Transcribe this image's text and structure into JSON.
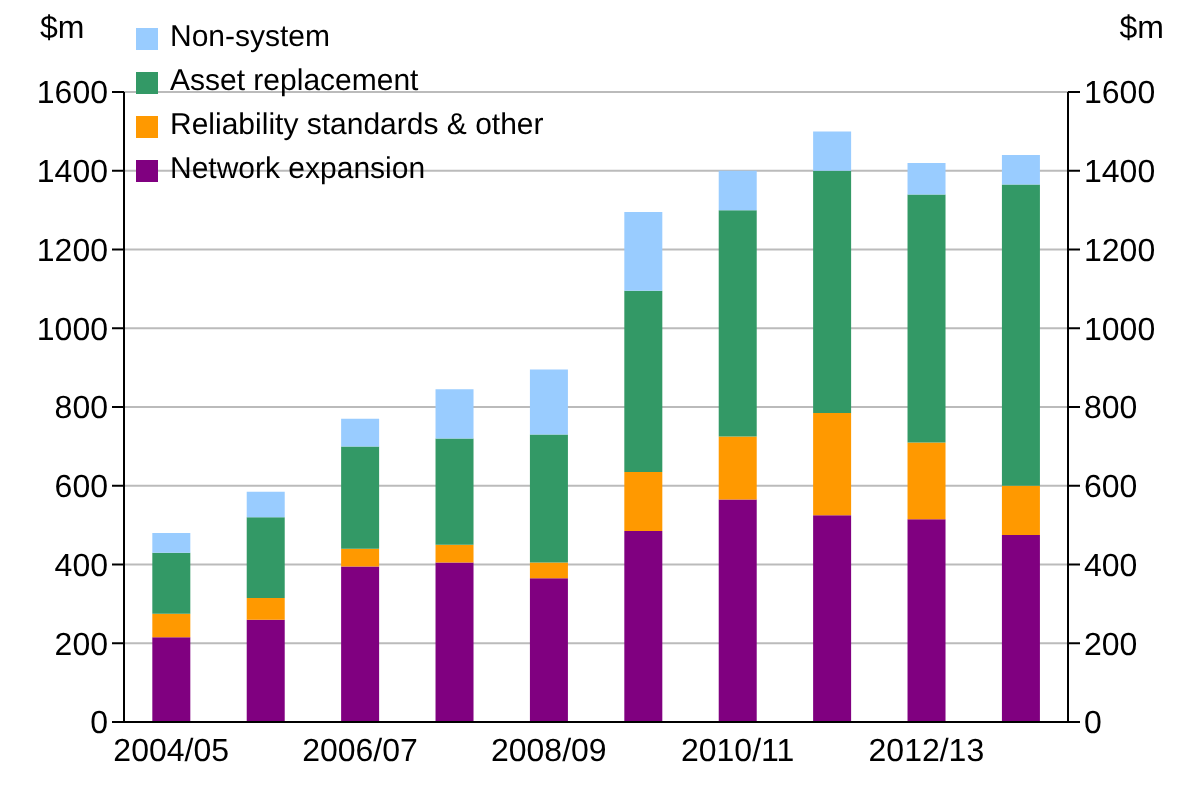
{
  "chart_data": {
    "type": "bar",
    "stacked": true,
    "ylabel": "$m",
    "y2label": "$m",
    "categories": [
      "2004/05",
      null,
      "2006/07",
      null,
      "2008/09",
      null,
      "2010/11",
      null,
      "2012/13",
      null
    ],
    "series": [
      {
        "name": "Network expansion",
        "color": "#800080",
        "values": [
          215,
          260,
          395,
          405,
          365,
          485,
          565,
          525,
          515,
          475
        ]
      },
      {
        "name": "Reliability standards & other",
        "color": "#ff9900",
        "values": [
          60,
          55,
          45,
          45,
          40,
          150,
          160,
          260,
          195,
          125
        ]
      },
      {
        "name": "Asset replacement",
        "color": "#339966",
        "values": [
          155,
          205,
          260,
          270,
          325,
          460,
          575,
          615,
          630,
          765
        ]
      },
      {
        "name": "Non-system",
        "color": "#99ccff",
        "values": [
          50,
          65,
          70,
          125,
          165,
          200,
          100,
          100,
          80,
          75
        ]
      }
    ],
    "ylim": [
      0,
      1600
    ],
    "yticks": [
      0,
      200,
      400,
      600,
      800,
      1000,
      1200,
      1400,
      1600
    ],
    "y2lim": [
      0,
      1600
    ],
    "y2ticks": [
      0,
      200,
      400,
      600,
      800,
      1000,
      1200,
      1400,
      1600
    ],
    "grid": "y",
    "legend": "top left"
  }
}
